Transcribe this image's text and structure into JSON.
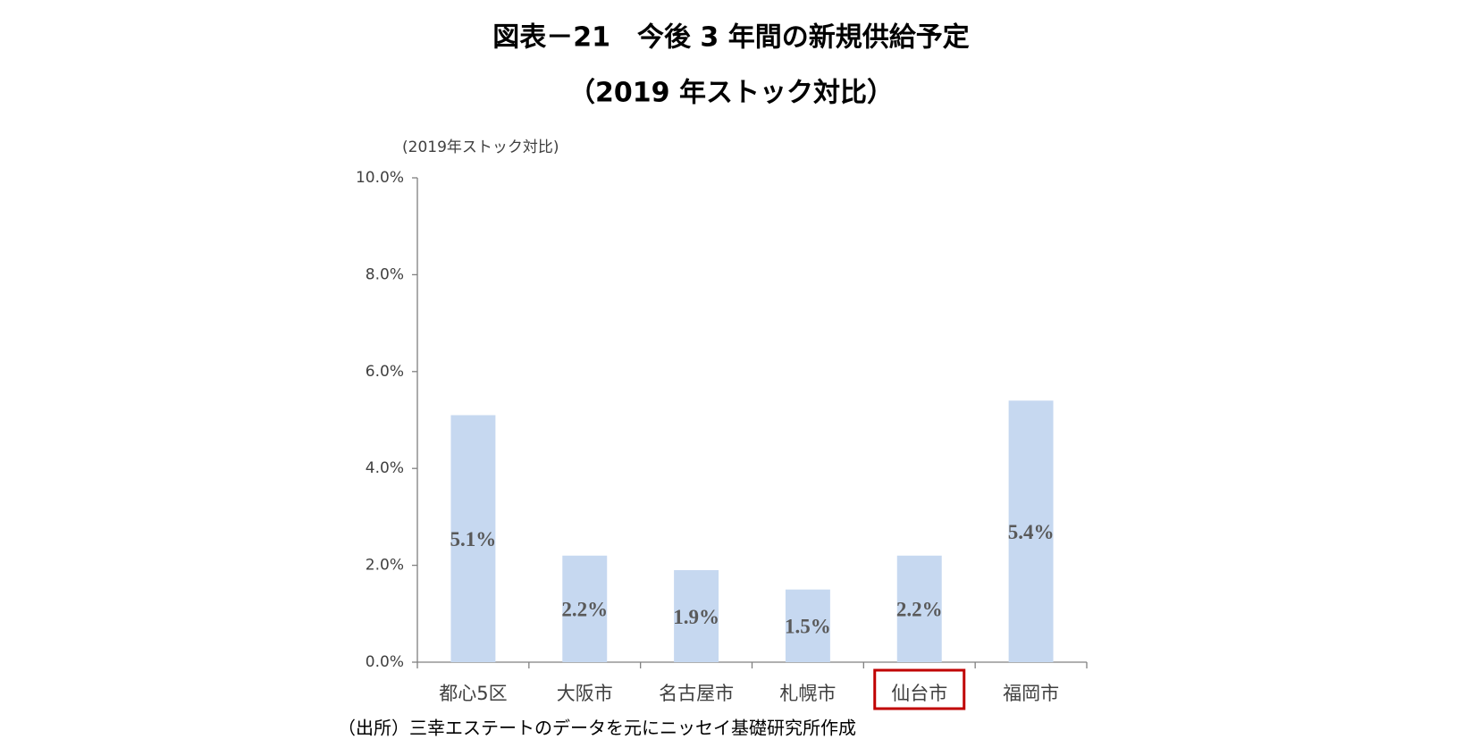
{
  "chart_data": {
    "type": "bar",
    "title": "図表－21　今後 3 年間の新規供給予定",
    "subtitle": "（2019 年ストック対比）",
    "y_axis_label": "(2019年ストック対比)",
    "categories": [
      "都心5区",
      "大阪市",
      "名古屋市",
      "札幌市",
      "仙台市",
      "福岡市"
    ],
    "values": [
      5.1,
      2.2,
      1.9,
      1.5,
      2.2,
      5.4
    ],
    "value_labels": [
      "5.1%",
      "2.2%",
      "1.9%",
      "1.5%",
      "2.2%",
      "5.4%"
    ],
    "color": "#c6d8f0",
    "ylim": [
      0,
      10
    ],
    "yticks": [
      {
        "value": 0,
        "label": "0.0%"
      },
      {
        "value": 2,
        "label": "2.0%"
      },
      {
        "value": 4,
        "label": "4.0%"
      },
      {
        "value": 6,
        "label": "6.0%"
      },
      {
        "value": 8,
        "label": "8.0%"
      },
      {
        "value": 10,
        "label": "10.0%"
      }
    ],
    "grid": false,
    "highlight": {
      "index": 4,
      "color": "#c00000"
    },
    "source": "（出所）三幸エステートのデータを元にニッセイ基礎研究所作成"
  }
}
